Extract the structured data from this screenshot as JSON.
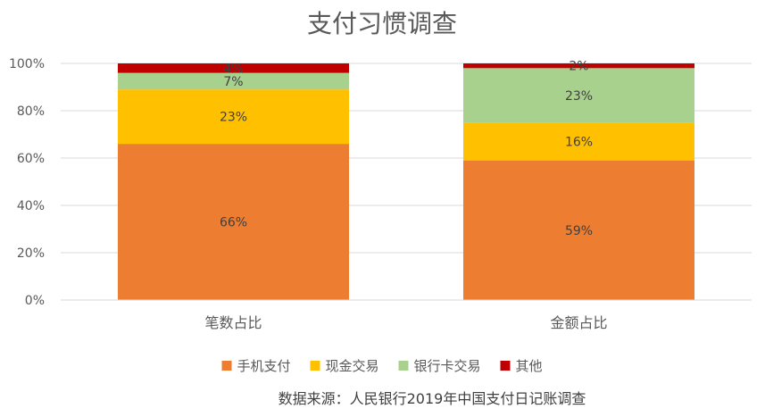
{
  "chart_data": {
    "type": "bar",
    "stacked": true,
    "title": "支付习惯调查",
    "categories": [
      "笔数占比",
      "金额占比"
    ],
    "series": [
      {
        "name": "手机支付",
        "values": [
          66,
          59
        ],
        "labels": [
          "66%",
          "59%"
        ],
        "color": "#ED7D31"
      },
      {
        "name": "现金交易",
        "values": [
          23,
          16
        ],
        "labels": [
          "23%",
          "16%"
        ],
        "color": "#FFC000"
      },
      {
        "name": "银行卡交易",
        "values": [
          7,
          23
        ],
        "labels": [
          "7%",
          "23%"
        ],
        "color": "#A9D18E"
      },
      {
        "name": "其他",
        "values": [
          4,
          2
        ],
        "labels": [
          "4%",
          "2%"
        ],
        "color": "#C00000"
      }
    ],
    "y_ticks": [
      "0%",
      "20%",
      "40%",
      "60%",
      "80%",
      "100%"
    ],
    "ylim": [
      0,
      100
    ],
    "grid": true,
    "legend_position": "bottom"
  },
  "source_note": "数据来源：人民银行2019年中国支付日记账调查"
}
